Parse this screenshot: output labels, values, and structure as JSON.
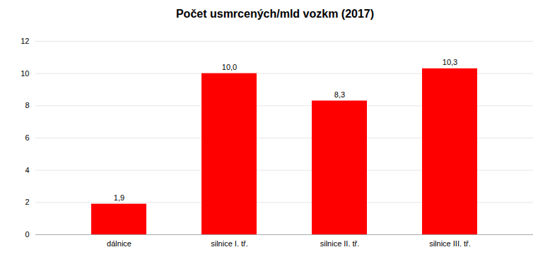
{
  "chart_data": {
    "type": "bar",
    "title": "Počet usmrcených/mld vozkm (2017)",
    "categories": [
      "dálnice",
      "silnice I. tř.",
      "silnice II. tř.",
      "silnice III. tř."
    ],
    "values": [
      1.9,
      10.0,
      8.3,
      10.3
    ],
    "value_labels": [
      "1,9",
      "10,0",
      "8,3",
      "10,3"
    ],
    "data_labels": true,
    "color": "#ff0000",
    "ylim": [
      0,
      12
    ],
    "yticks": [
      0,
      2,
      4,
      6,
      8,
      10,
      12
    ],
    "grid": true
  }
}
